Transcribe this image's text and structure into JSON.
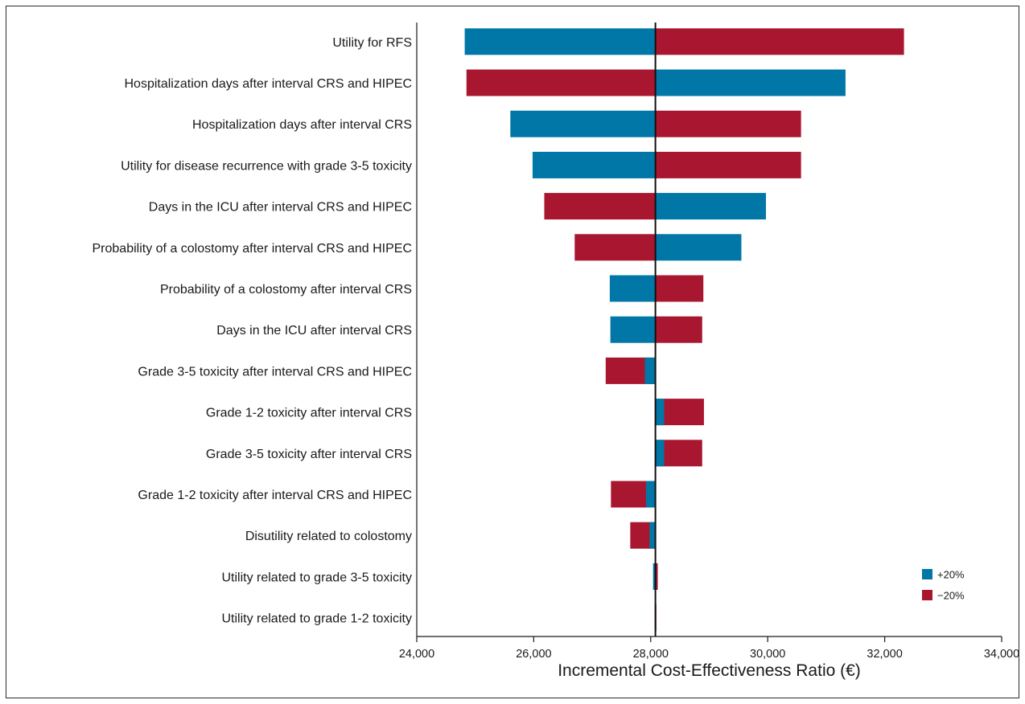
{
  "chart_data": {
    "type": "bar",
    "orientation": "horizontal",
    "subtype": "tornado",
    "title": "",
    "xlabel": "Incremental Cost-Effectiveness Ratio (€)",
    "ylabel": "",
    "xlim": [
      24000,
      34000
    ],
    "xticks": [
      24000,
      26000,
      28000,
      30000,
      32000,
      34000
    ],
    "xtick_labels": [
      "24,000",
      "26,000",
      "28,000",
      "30,000",
      "32,000",
      "34,000"
    ],
    "base_value": 28080,
    "grid": false,
    "legend_position": "bottom-right",
    "colors": {
      "plus20": "#0077a6",
      "minus20": "#a8172f"
    },
    "series": [
      {
        "key": "plus20",
        "name": "+20%"
      },
      {
        "key": "minus20",
        "name": "−20%"
      }
    ],
    "categories": [
      "Utility for RFS",
      "Hospitalization days after interval CRS and HIPEC",
      "Hospitalization days after interval CRS",
      "Utility for disease recurrence with grade 3-5 toxicity",
      "Days in the ICU after interval CRS and HIPEC",
      "Probability of a colostomy after interval CRS and HIPEC",
      "Probability of a colostomy after interval CRS",
      "Days in the ICU after interval CRS",
      "Grade 3-5 toxicity after interval CRS and HIPEC",
      "Grade 1-2 toxicity after interval CRS",
      "Grade 3-5 toxicity after interval CRS",
      "Grade 1-2 toxicity after interval CRS and HIPEC",
      "Disutility related to colostomy",
      "Utility related to grade 3-5 toxicity",
      "Utility related to grade 1-2 toxicity"
    ],
    "values": {
      "plus20": [
        24820,
        31330,
        25600,
        25980,
        29970,
        29550,
        27300,
        27310,
        27900,
        28230,
        28230,
        27920,
        27980,
        28040,
        28070
      ],
      "minus20": [
        32330,
        24850,
        30570,
        30570,
        26180,
        26700,
        28900,
        28880,
        27230,
        28910,
        28880,
        27320,
        27650,
        28120,
        28090
      ]
    }
  }
}
